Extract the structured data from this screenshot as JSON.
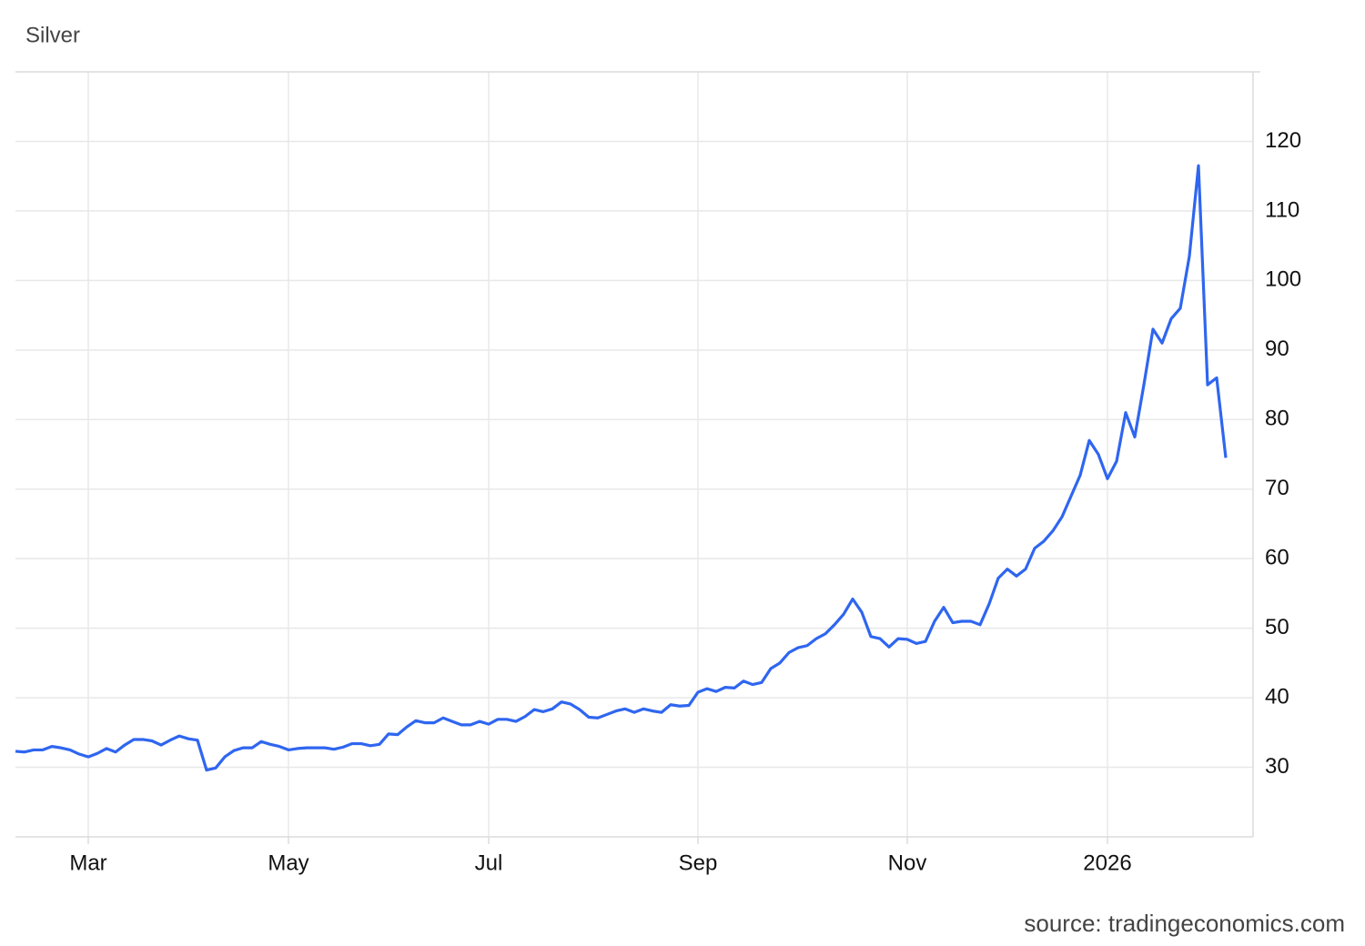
{
  "chart_data": {
    "type": "line",
    "title": "Silver",
    "source": "source: tradingeconomics.com",
    "xlim": [
      0,
      136
    ],
    "xticks": [
      {
        "value": 8,
        "label": "Mar"
      },
      {
        "value": 30,
        "label": "May"
      },
      {
        "value": 52,
        "label": "Jul"
      },
      {
        "value": 75,
        "label": "Sep"
      },
      {
        "value": 98,
        "label": "Nov"
      },
      {
        "value": 120,
        "label": "2026"
      }
    ],
    "ylim": [
      20,
      130
    ],
    "yticks": [
      30,
      40,
      50,
      60,
      70,
      80,
      90,
      100,
      110,
      120
    ],
    "grid": true,
    "series": [
      {
        "name": "Silver",
        "color": "#2f66f0",
        "values": [
          32.3,
          32.2,
          32.5,
          32.5,
          33,
          32.8,
          32.5,
          31.9,
          31.5,
          32,
          32.7,
          32.2,
          33.2,
          34,
          34,
          33.8,
          33.2,
          33.9,
          34.5,
          34.1,
          33.9,
          29.6,
          29.9,
          31.5,
          32.4,
          32.8,
          32.8,
          33.7,
          33.3,
          33,
          32.5,
          32.7,
          32.8,
          32.8,
          32.8,
          32.6,
          32.9,
          33.4,
          33.4,
          33.1,
          33.3,
          34.8,
          34.7,
          35.8,
          36.7,
          36.4,
          36.4,
          37.1,
          36.6,
          36.1,
          36.1,
          36.6,
          36.2,
          36.9,
          36.9,
          36.6,
          37.3,
          38.3,
          38,
          38.4,
          39.4,
          39.1,
          38.3,
          37.2,
          37.1,
          37.6,
          38.1,
          38.4,
          37.9,
          38.4,
          38.1,
          37.9,
          39,
          38.8,
          38.9,
          40.8,
          41.3,
          40.9,
          41.5,
          41.4,
          42.4,
          41.9,
          42.2,
          44.2,
          45,
          46.5,
          47.2,
          47.5,
          48.5,
          49.2,
          50.5,
          52,
          54.2,
          52.3,
          48.8,
          48.5,
          47.3,
          48.5,
          48.4,
          47.8,
          48.1,
          51,
          53,
          50.8,
          51,
          51,
          50.5,
          53.5,
          57.2,
          58.5,
          57.5,
          58.5,
          61.5,
          62.5,
          64,
          66,
          69,
          72,
          77,
          75,
          71.5,
          74,
          81,
          77.5,
          85,
          93,
          91,
          94.5,
          96,
          103.5,
          116.5,
          85,
          86,
          74.5
        ]
      }
    ]
  }
}
